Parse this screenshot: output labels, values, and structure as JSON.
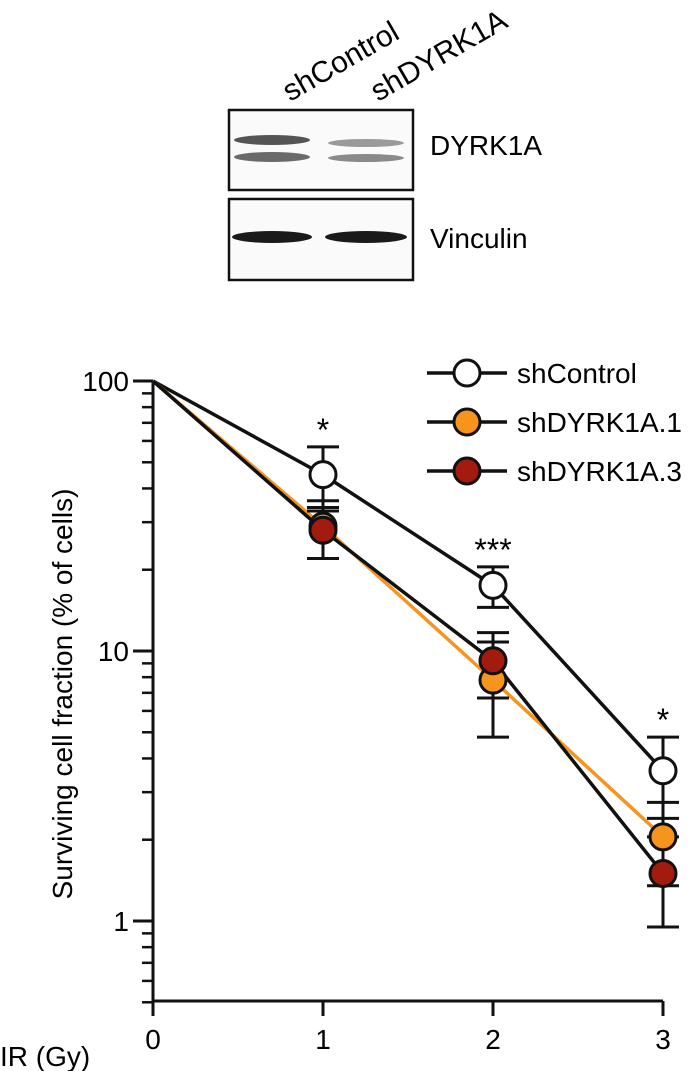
{
  "western_blot": {
    "lanes": [
      "shControl",
      "shDYRK1A"
    ],
    "panels": [
      {
        "label": "DYRK1A"
      },
      {
        "label": "Vinculin"
      }
    ]
  },
  "chart_data": {
    "type": "line",
    "xlabel": "IR (Gy)",
    "ylabel": "Surviving cell fraction (% of cells)",
    "x": [
      0,
      1,
      2,
      3
    ],
    "x_ticks": [
      "0",
      "1",
      "2",
      "3"
    ],
    "y_scale": "log",
    "ylim": [
      0.5,
      100
    ],
    "y_ticks": [
      "1",
      "10",
      "100"
    ],
    "grid": false,
    "legend_position": "top-right",
    "series": [
      {
        "name": "shControl",
        "values": [
          100,
          45,
          17.5,
          3.6
        ],
        "error": [
          null,
          12,
          3,
          1.2
        ],
        "fill": "#ffffff",
        "line": "#111111"
      },
      {
        "name": "shDYRK1A.1",
        "values": [
          100,
          29,
          7.8,
          2.05
        ],
        "error": [
          null,
          7,
          3,
          0.7
        ],
        "fill": "#f7941d",
        "line": "#f7941d"
      },
      {
        "name": "shDYRK1A.3",
        "values": [
          100,
          28,
          9.2,
          1.5
        ],
        "error": [
          null,
          6,
          2.5,
          0.55
        ],
        "fill": "#a31a0e",
        "line": "#111111"
      }
    ],
    "annotations": [
      {
        "x": 1,
        "text": "*"
      },
      {
        "x": 2,
        "text": "***"
      },
      {
        "x": 3,
        "text": "*"
      }
    ]
  }
}
